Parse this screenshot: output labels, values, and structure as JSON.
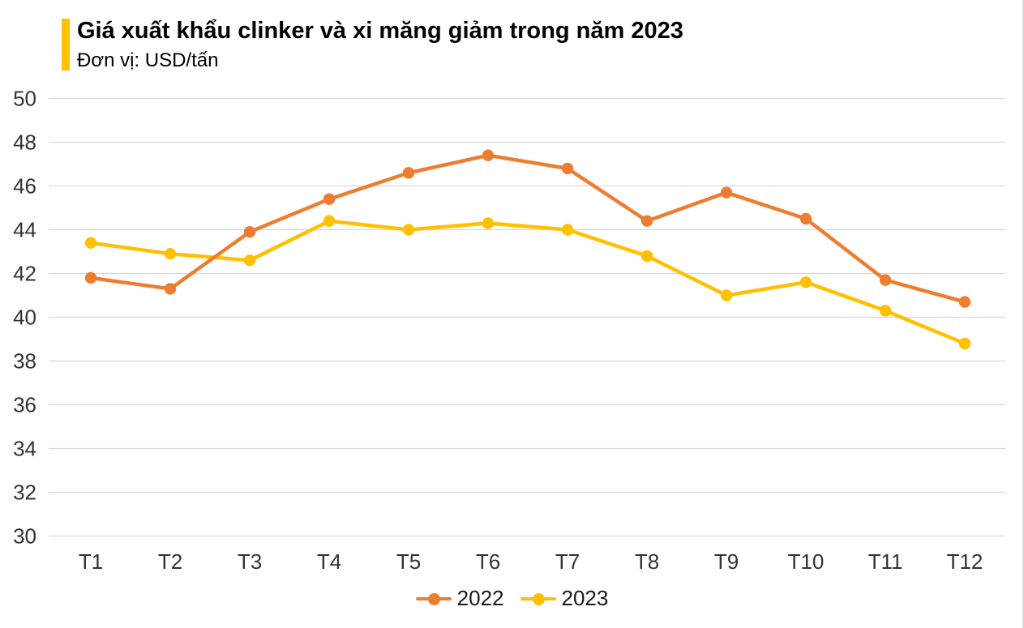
{
  "header": {
    "title": "Giá xuất khẩu clinker và xi măng giảm trong năm 2023",
    "subtitle": "Đơn vị: USD/tấn",
    "accent_color": "#FFC000"
  },
  "chart_data": {
    "type": "line",
    "title": "Giá xuất khẩu clinker và xi măng giảm trong năm 2023",
    "unit": "USD/tấn",
    "xlabel": "",
    "ylabel": "",
    "categories": [
      "T1",
      "T2",
      "T3",
      "T4",
      "T5",
      "T6",
      "T7",
      "T8",
      "T9",
      "T10",
      "T11",
      "T12"
    ],
    "series": [
      {
        "name": "2022",
        "color": "#ED7D31",
        "values": [
          41.8,
          41.3,
          43.9,
          45.4,
          46.6,
          47.4,
          46.8,
          44.4,
          45.7,
          44.5,
          41.7,
          40.7
        ]
      },
      {
        "name": "2023",
        "color": "#FFC000",
        "values": [
          43.4,
          42.9,
          42.6,
          44.4,
          44.0,
          44.3,
          44.0,
          42.8,
          41.0,
          41.6,
          40.3,
          38.8
        ]
      }
    ],
    "ylim": [
      30,
      50
    ],
    "ytick_step": 2,
    "grid": true,
    "gridline_color": "#D9D9D9",
    "axis_text_color": "#333333",
    "legend_position": "bottom",
    "draw_order": [
      "2023",
      "2022"
    ],
    "marker": "circle"
  },
  "legend": {
    "items": [
      {
        "label": "2022",
        "color": "#ED7D31"
      },
      {
        "label": "2023",
        "color": "#FFC000"
      }
    ]
  }
}
